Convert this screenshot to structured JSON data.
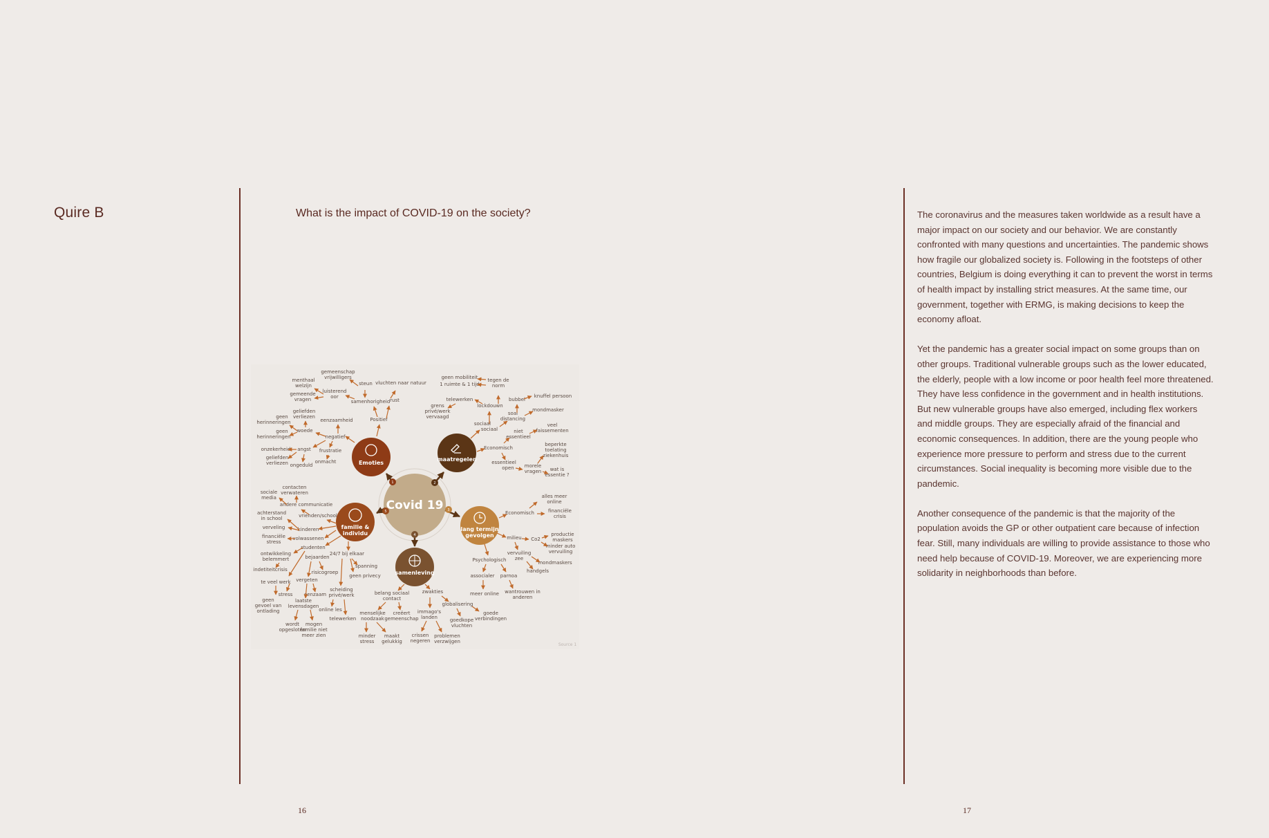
{
  "left_page": {
    "section_title": "Quire B",
    "question": "What is the impact of COVID-19 on the society?",
    "page_number": "16"
  },
  "right_page": {
    "paragraphs": [
      "The coronavirus and the measures taken worldwide as a result have a major impact on our society and our behavior. We are constantly confronted with many questions and uncertainties. The pandemic shows how fragile our globalized society is. Following in the footsteps of other countries, Belgium is doing everything it can to prevent the worst in terms of health impact by installing strict measures. At the same time, our government, together with ERMG, is making decisions to keep the economy afloat.",
      "Yet the pandemic has a greater social impact on some groups than on other groups. Traditional vulnerable groups such as the lower educated, the elderly, people with a low income or poor health feel more threatened. They have less confidence in the government and in health institutions. But new vulnerable groups have also emerged, including flex workers and middle groups. They are especially afraid of the financial and economic consequences. In addition, there are the young people who experience more pressure to perform and stress due to the current circumstances. Social inequality is becoming more visible due to the pandemic.",
      "Another consequence of the pandemic is that the majority of the population avoids the GP or other outpatient care because of infection fear. Still, many individuals are willing to provide assistance to those who need help because of COVID-19. Moreover, we are experiencing more solidarity in neighborhoods than before."
    ],
    "page_number": "17"
  },
  "mindmap": {
    "center": "Covid 19",
    "source": "Source 1",
    "colors": {
      "emoties": "#8e3b16",
      "maatregelen": "#5b3516",
      "familie": "#9a4a1c",
      "lang_termijn": "#c0843f",
      "samenleving": "#7a5230",
      "center": "#c2ab8a",
      "arrow": "#c06a2b"
    },
    "hubs": {
      "emoties": "Emoties",
      "maatregelen": "maatregelen",
      "familie_1": "familie &",
      "familie_2": "individu",
      "lang_1": "lang termijn",
      "lang_2": "gevolgen",
      "samenleving": "samenleving"
    },
    "numbers": [
      "1",
      "2",
      "3",
      "4",
      "5"
    ],
    "labels": {
      "gemeenschap": "gemeenschap",
      "vrijwilligers": "vrijwilligers",
      "steun": "steun",
      "vluchten_natuur": "vluchten naar natuur",
      "menthaal": "menthaal",
      "welzijn": "welzijn",
      "luisterend": "luisterend",
      "oor": "oor",
      "gemeende": "gemeende",
      "vragen": "vragen",
      "samenhorigheid": "samenhorigheid",
      "rust": "rust",
      "geliefden": "geliefden",
      "verliezen": "verliezen",
      "eenzaamheid": "eenzaamheid",
      "positief": "Positief",
      "geen": "geen",
      "herinneringen": "herinneringen",
      "woede": "woede",
      "negatief": "negatief",
      "angst": "angst",
      "onzekerheid": "onzekerheid",
      "frustratie": "frustratie",
      "ongeduld": "ongeduld",
      "onmacht": "onmacht",
      "geen_mobiliteit": "geen mobiliteit",
      "ruimte_tijd": "1 ruimte & 1 tijd",
      "tegen_de": "tegen de",
      "norm": "norm",
      "telewerken": "telewerken",
      "bubbel": "bubbel",
      "knuffel": "knuffel persoon",
      "grens": "grens",
      "privewerk": "privé/werk",
      "vervaagd": "vervaagd",
      "lockdouwn": "lockdouwn",
      "soal": "soal",
      "distancing": "distancing",
      "mondmasker": "mondmasker",
      "sociaal": "sociaal",
      "niet": "niet",
      "essentieel": "essentieel",
      "veel": "veel",
      "faissementen": "faissementen",
      "economisch": "Economisch",
      "beperkte": "beperkte",
      "toelating": "toelating",
      "ziekenhuis": "ziekenhuis",
      "open": "open",
      "morele": "morele",
      "wat_is": "wat is",
      "essentie": "essentie ?",
      "sociale": "sociale",
      "media": "media",
      "contacten": "contacten",
      "verwateren": "verwateren",
      "andere_comm": "andere communicatie",
      "achterstand": "achterstand",
      "in_school": "in school",
      "vrienden_school": "vrienden/school",
      "verveling": "verveling",
      "kinderen": "kinderen",
      "financiele": "financiële",
      "stress": "stress",
      "volwassenen": "volwassenen",
      "studenten": "studenten",
      "ontwikkeling": "ontwikkeling",
      "belemmert": "belemmert",
      "bejaarden": "bejaarden",
      "bij_elkaar": "24/7 bij elkaar",
      "spanning": "spanning",
      "indetiteitcrisis": "indetiteitcrisis",
      "risicogroep": "risicogroep",
      "geen_privacy": "geen privecy",
      "te_veel_werk": "te veel werk",
      "vergeten": "vergeten",
      "scheiding": "scheiding",
      "prive_werk": "privé/werk",
      "eenzaam": "eenzaam",
      "laatste": "laatste",
      "levensdagen": "levensdagen",
      "online_les": "online les",
      "gevoel_van": "gevoel van",
      "ontlading": "ontlading",
      "wordt": "wordt",
      "opgesloten": "opgesloten",
      "mogen": "mogen",
      "familie_niet": "familie niet",
      "meer_zien": "meer zien",
      "alles_meer": "alles meer",
      "online": "online",
      "crisis": "crisis",
      "milieu": "milieu",
      "co2": "Co2",
      "productie": "productie",
      "maskers": "maskers",
      "minder_auto": "minder auto",
      "vervuiling": "vervuiling",
      "zee": "zee",
      "mondmaskers": "mondmaskers",
      "psychologisch": "Psychologisch",
      "handgels": "handgels",
      "associaler": "associaler",
      "parnoa": "parnoa",
      "meer_online": "meer online",
      "wantrouwen_in": "wantrouwen in",
      "anderen": "anderen",
      "belang_sociaal": "belang sociaal",
      "contact": "contact",
      "zwakties": "zwakties",
      "globalisering": "globalisering",
      "goede": "goede",
      "verbindingen": "verbindingen",
      "menselijke": "menselijke",
      "noodzaak": "noodzaak",
      "creeert": "creëert",
      "gemeenschap2": "gemeenschap",
      "immagos": "immago's",
      "landen": "landen",
      "goedkope": "goedkope",
      "vluchten": "vluchten",
      "minder": "minder",
      "maakt": "maakt",
      "gelukkig": "gelukkig",
      "crissen": "crissen",
      "negeren": "negeren",
      "problemen": "problemen",
      "verzwijgen": "verzwijgen"
    }
  }
}
